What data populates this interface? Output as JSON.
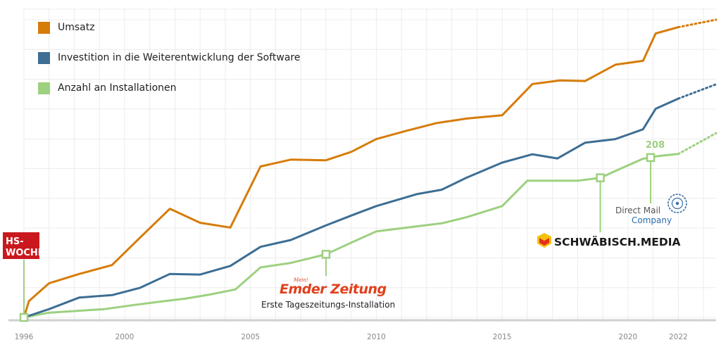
{
  "chart_data": {
    "type": "line",
    "xlim": [
      1996,
      2023.5
    ],
    "ylim": [
      0,
      100
    ],
    "x_ticks": [
      "1996",
      "2000",
      "2005",
      "2010",
      "2015",
      "2020",
      "2022"
    ],
    "grid": {
      "vertical": true,
      "horizontal": true
    },
    "legend_placement": "top-left",
    "series": [
      {
        "name": "Umsatz",
        "color": "#d67c0a",
        "x": [
          1996,
          1996.2,
          1997,
          1998.2,
          1999.5,
          2000.6,
          2001.8,
          2003,
          2004.2,
          2005.4,
          2006.6,
          2008,
          2009,
          2010,
          2011.2,
          2012.4,
          2013.6,
          2015,
          2016.2,
          2017.3,
          2018.3,
          2019.5,
          2020.6,
          2021.1,
          2022
        ],
        "y": [
          0,
          5.5,
          11.5,
          14.6,
          17.6,
          26.7,
          36.5,
          31.8,
          30.2,
          50.7,
          53,
          52.8,
          55.6,
          59.9,
          62.7,
          65.3,
          66.8,
          67.9,
          78.4,
          79.6,
          79.4,
          84.9,
          86.2,
          95.4,
          97.5
        ],
        "projection": {
          "x": [
            2022,
            2023.5
          ],
          "y": [
            97.5,
            100
          ]
        }
      },
      {
        "name": "Investition in die Weiterentwicklung der Software",
        "color": "#3d6e94",
        "x": [
          1996,
          1997,
          1998.2,
          1999.5,
          2000.6,
          2001.8,
          2003,
          2004.2,
          2005.4,
          2006.6,
          2008,
          2009,
          2010,
          2011.6,
          2012.6,
          2013.6,
          2015,
          2016.2,
          2017.2,
          2018.3,
          2019.5,
          2020.6,
          2021.1,
          2022
        ],
        "y": [
          0,
          2.8,
          6.7,
          7.5,
          9.9,
          14.6,
          14.4,
          17.3,
          23.7,
          26,
          30.9,
          34.2,
          37.4,
          41.4,
          42.9,
          47,
          52,
          54.8,
          53.4,
          58.7,
          59.9,
          63.2,
          70.1,
          73.5
        ],
        "projection": {
          "x": [
            2022,
            2023.5
          ],
          "y": [
            73.5,
            78.3
          ]
        }
      },
      {
        "name": "Anzahl an Installationen",
        "color": "#9dd07f",
        "x": [
          1996,
          1997,
          1999.2,
          2000.4,
          2001.6,
          2002.4,
          2003.4,
          2004.4,
          2005.4,
          2006.6,
          2008,
          2009,
          2010,
          2011.6,
          2012.6,
          2013.6,
          2015,
          2016,
          2017,
          2018,
          2018.9,
          2019.9,
          2020.6,
          2021.2,
          2022
        ],
        "y": [
          0,
          1.6,
          2.8,
          4.2,
          5.5,
          6.3,
          7.7,
          9.4,
          16.8,
          18.3,
          21.2,
          25.1,
          28.9,
          30.6,
          31.6,
          33.7,
          37.4,
          45.9,
          45.9,
          45.9,
          46.9,
          50.7,
          53.3,
          54.2,
          54.9
        ],
        "projection": {
          "x": [
            2022,
            2023.5
          ],
          "y": [
            54.9,
            61.9
          ]
        }
      }
    ],
    "annotations": [
      {
        "id": "hs-woche",
        "x": 1996,
        "y": 0,
        "series": "Anzahl an Installationen",
        "logo_text": [
          "HS-",
          "WOCHE"
        ]
      },
      {
        "id": "ember",
        "x": 2008,
        "y": 21.2,
        "series": "Anzahl an Installationen",
        "logo_text": "Emder Zeitung",
        "logo_small": "Mein!",
        "caption": "Erste Tageszeitungs-Installation"
      },
      {
        "id": "schwaebisch",
        "x": 2018.9,
        "y": 46.9,
        "series": "Anzahl an Installationen",
        "logo_text": "SCHWÄBISCH.MEDIA"
      },
      {
        "id": "directmail",
        "x": 2020.9,
        "y": 53.7,
        "series": "Anzahl an Installationen",
        "logo_text": [
          "Direct Mail",
          "Company"
        ],
        "value_label": "208"
      }
    ]
  }
}
